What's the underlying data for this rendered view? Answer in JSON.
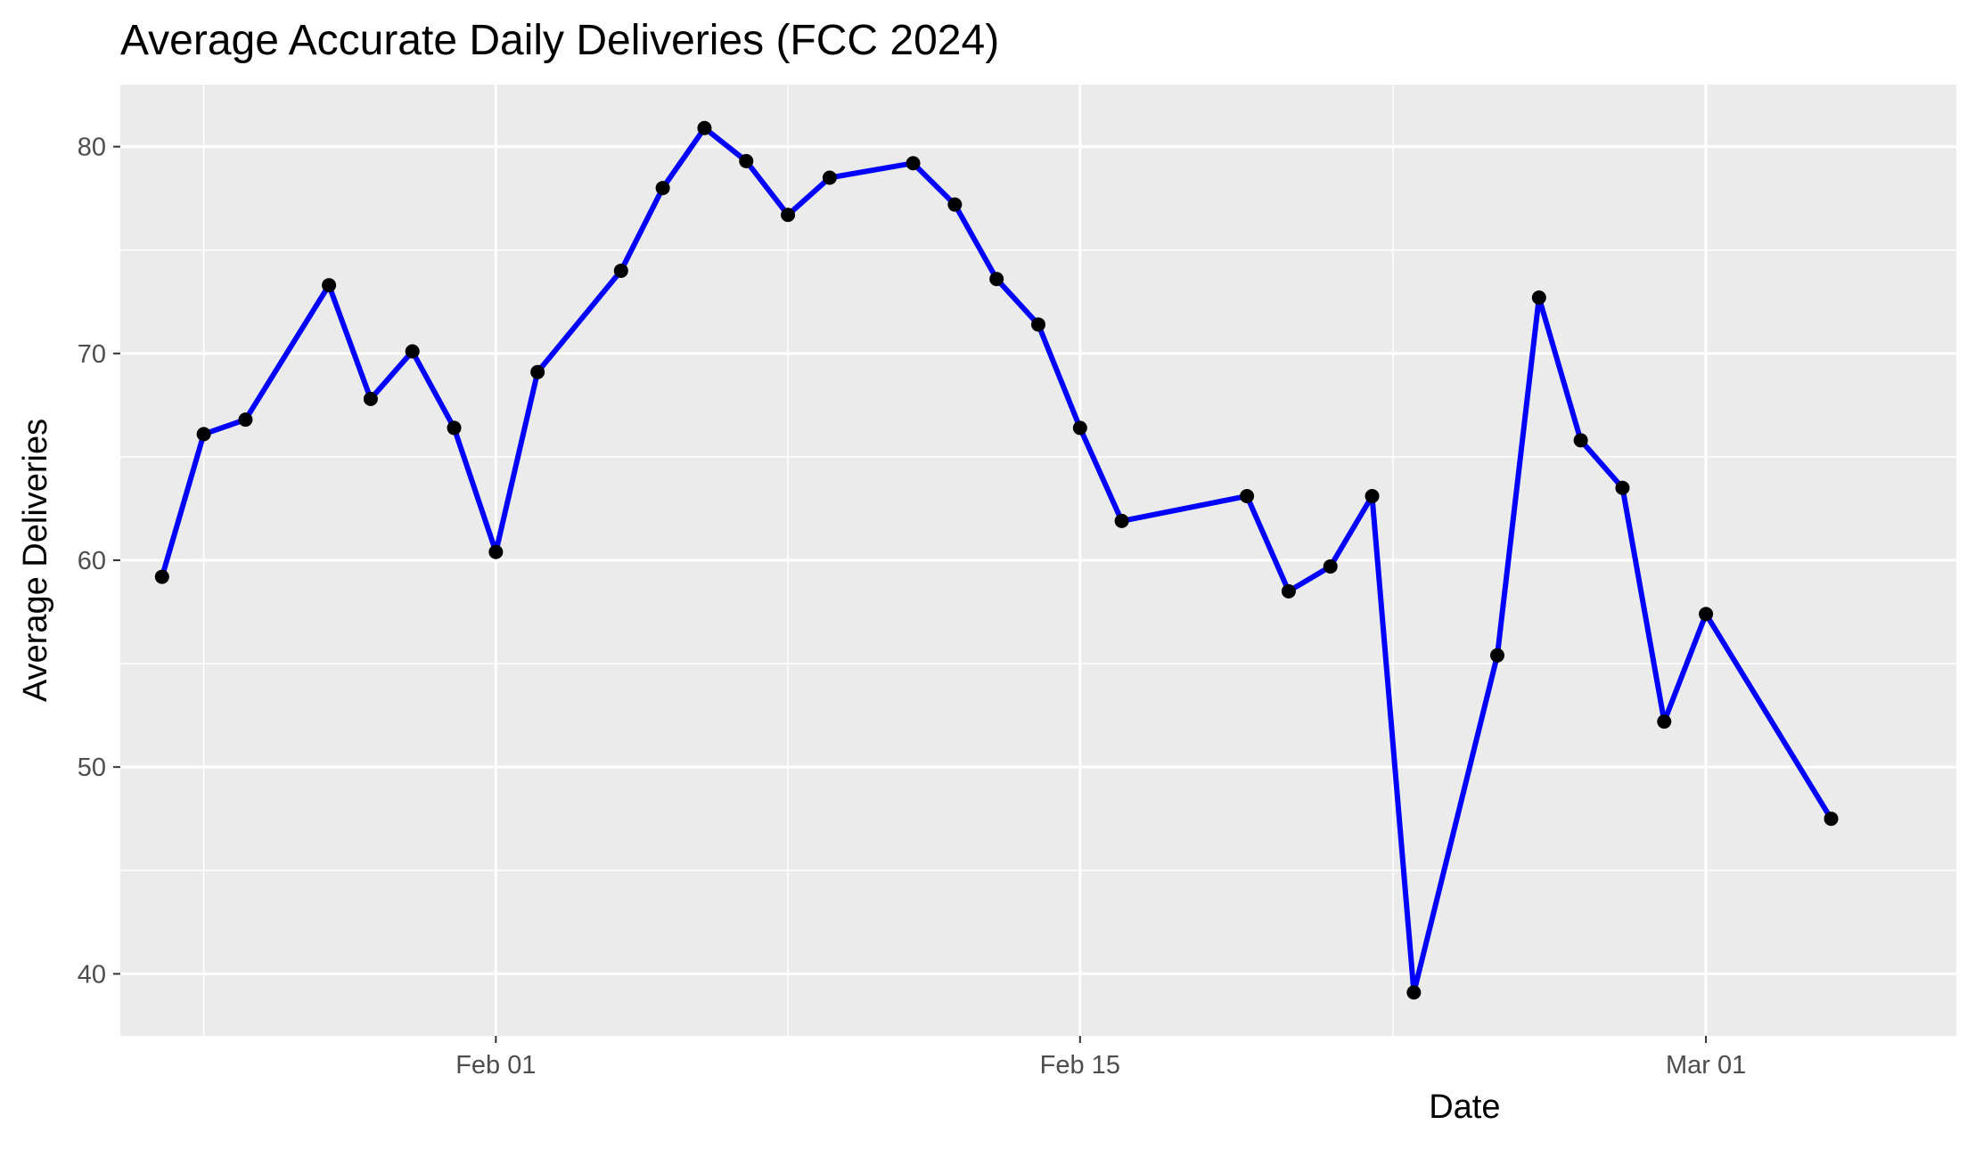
{
  "chart_data": {
    "type": "line",
    "title": "Average Accurate Daily Deliveries (FCC 2024)",
    "xlabel": "Date",
    "ylabel": "Average Deliveries",
    "x_ticks": [
      {
        "date": "2024-02-01",
        "label": "Feb 01"
      },
      {
        "date": "2024-02-15",
        "label": "Feb 15"
      },
      {
        "date": "2024-03-01",
        "label": "Mar 01"
      }
    ],
    "y_ticks": [
      40,
      50,
      60,
      70,
      80
    ],
    "xlim": [
      "2024-01-23",
      "2024-03-07"
    ],
    "ylim": [
      37,
      83
    ],
    "grid": true,
    "colors": {
      "line": "#0000FF",
      "point": "#000000",
      "panel": "#EBEBEB",
      "grid": "#FFFFFF",
      "tick_label": "#4D4D4D"
    },
    "series": [
      {
        "points": [
          {
            "x": "2024-01-24",
            "y": 59.2
          },
          {
            "x": "2024-01-25",
            "y": 66.1
          },
          {
            "x": "2024-01-26",
            "y": 66.8
          },
          {
            "x": "2024-01-28",
            "y": 73.3
          },
          {
            "x": "2024-01-29",
            "y": 67.8
          },
          {
            "x": "2024-01-30",
            "y": 70.1
          },
          {
            "x": "2024-01-31",
            "y": 66.4
          },
          {
            "x": "2024-02-01",
            "y": 60.4
          },
          {
            "x": "2024-02-02",
            "y": 69.1
          },
          {
            "x": "2024-02-04",
            "y": 74.0
          },
          {
            "x": "2024-02-05",
            "y": 78.0
          },
          {
            "x": "2024-02-06",
            "y": 80.9
          },
          {
            "x": "2024-02-07",
            "y": 79.3
          },
          {
            "x": "2024-02-08",
            "y": 76.7
          },
          {
            "x": "2024-02-09",
            "y": 78.5
          },
          {
            "x": "2024-02-11",
            "y": 79.2
          },
          {
            "x": "2024-02-12",
            "y": 77.2
          },
          {
            "x": "2024-02-13",
            "y": 73.6
          },
          {
            "x": "2024-02-14",
            "y": 71.4
          },
          {
            "x": "2024-02-15",
            "y": 66.4
          },
          {
            "x": "2024-02-16",
            "y": 61.9
          },
          {
            "x": "2024-02-19",
            "y": 63.1
          },
          {
            "x": "2024-02-20",
            "y": 58.5
          },
          {
            "x": "2024-02-21",
            "y": 59.7
          },
          {
            "x": "2024-02-22",
            "y": 63.1
          },
          {
            "x": "2024-02-23",
            "y": 39.1
          },
          {
            "x": "2024-02-25",
            "y": 55.4
          },
          {
            "x": "2024-02-26",
            "y": 72.7
          },
          {
            "x": "2024-02-27",
            "y": 65.8
          },
          {
            "x": "2024-02-28",
            "y": 63.5
          },
          {
            "x": "2024-02-29",
            "y": 52.2
          },
          {
            "x": "2024-03-01",
            "y": 57.4
          },
          {
            "x": "2024-03-04",
            "y": 47.5
          }
        ]
      }
    ]
  }
}
